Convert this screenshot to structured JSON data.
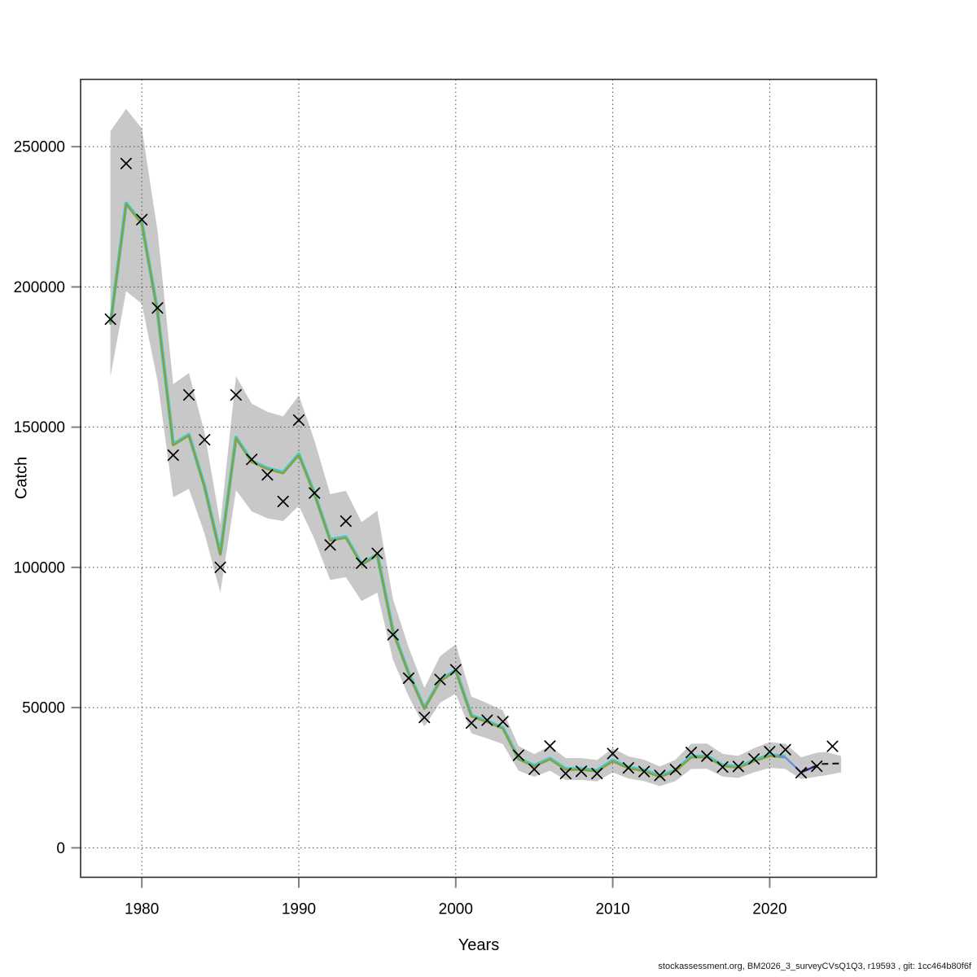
{
  "footer": {
    "text": "stockassessment.org, BM2026_3_surveyCVsQ1Q3, r19593 , git: 1cc464b80f6f"
  },
  "chart_data": {
    "type": "line",
    "title": "",
    "xlabel": "Years",
    "ylabel": "Catch",
    "x_ticks": [
      1980,
      1990,
      2000,
      2010,
      2020
    ],
    "y_ticks": [
      0,
      50000,
      100000,
      150000,
      200000,
      250000
    ],
    "xlim": [
      1976.1,
      2026.8
    ],
    "ylim": [
      -10500,
      274000
    ],
    "grid": true,
    "legend": "none",
    "years": [
      1978,
      1979,
      1980,
      1981,
      1982,
      1983,
      1984,
      1985,
      1986,
      1987,
      1988,
      1989,
      1990,
      1991,
      1992,
      1993,
      1994,
      1995,
      1996,
      1997,
      1998,
      1999,
      2000,
      2001,
      2002,
      2003,
      2004,
      2005,
      2006,
      2007,
      2008,
      2009,
      2010,
      2011,
      2012,
      2013,
      2014,
      2015,
      2016,
      2017,
      2018,
      2019,
      2020,
      2021,
      2022,
      2023,
      2024
    ],
    "observed_catch": [
      188500,
      244000,
      224000,
      192500,
      140000,
      161500,
      145500,
      100000,
      161500,
      138500,
      133000,
      123500,
      152500,
      126500,
      108000,
      116500,
      101500,
      105000,
      76000,
      60500,
      46500,
      60000,
      63500,
      44500,
      45500,
      45000,
      33000,
      28000,
      36300,
      26500,
      27300,
      26500,
      33600,
      28500,
      27200,
      25800,
      27900,
      34000,
      32700,
      28800,
      29000,
      31700,
      34300,
      35000,
      26800,
      29100,
      36200
    ],
    "fitted_catch": [
      186500,
      229500,
      222500,
      191000,
      143500,
      147000,
      128500,
      104500,
      146000,
      137500,
      135000,
      133500,
      140000,
      126000,
      109500,
      110500,
      100800,
      104300,
      77000,
      62000,
      49500,
      59300,
      63000,
      46800,
      44800,
      42500,
      31500,
      29000,
      31500,
      27800,
      27800,
      27200,
      30800,
      28300,
      27300,
      25200,
      27300,
      32200,
      32300,
      29100,
      28500,
      30800,
      32700,
      32200,
      26900,
      29300
    ],
    "ci_lower": [
      168000,
      198500,
      194000,
      166500,
      125000,
      128000,
      112000,
      91000,
      127500,
      120000,
      117500,
      116500,
      122000,
      110000,
      95500,
      96500,
      88000,
      91000,
      67000,
      54000,
      43200,
      51700,
      55000,
      40800,
      39000,
      37000,
      27500,
      25300,
      27500,
      24200,
      24200,
      23700,
      26900,
      24700,
      23800,
      22000,
      23800,
      28100,
      28200,
      25400,
      24900,
      26900,
      28500,
      28100,
      24500,
      25400
    ],
    "ci_upper": [
      255500,
      263500,
      256500,
      220000,
      165300,
      169300,
      148000,
      115500,
      168200,
      158400,
      155500,
      153800,
      161300,
      145200,
      126100,
      127300,
      116100,
      120200,
      88700,
      71400,
      57000,
      68300,
      72600,
      53900,
      51600,
      49000,
      36300,
      33400,
      36300,
      32000,
      32000,
      31300,
      35500,
      32600,
      31400,
      29000,
      31400,
      37100,
      37200,
      33500,
      32800,
      35500,
      37700,
      37100,
      32300,
      33900
    ],
    "ci_extension": [
      [
        2023.5,
        25800,
        34200
      ],
      [
        2024.0,
        26300,
        33600
      ],
      [
        2024.55,
        26900,
        32700
      ]
    ],
    "highlight_segments": {
      "lightblue": [
        [
          2020.5,
          33000
        ],
        [
          2021,
          32200
        ],
        [
          2022,
          26900
        ]
      ],
      "navy": [
        [
          2022,
          26900
        ],
        [
          2023,
          29300
        ]
      ]
    },
    "forecast_dashed": [
      [
        2022.05,
        27300
      ],
      [
        2023.3,
        29900
      ],
      [
        2024.55,
        30100
      ]
    ],
    "colors": {
      "band": "#c8c8c8",
      "fit_olive": "#8f9e33",
      "fit_cyan": "#3ec9d1",
      "fit_lightblue": "#5e93df",
      "fit_navy": "#2e2ea4",
      "forecast_dash": "#1b1b1b",
      "marker": "#000000",
      "grid": "#4d4d4d",
      "box": "#2b2b2b",
      "tick": "#808080"
    }
  }
}
